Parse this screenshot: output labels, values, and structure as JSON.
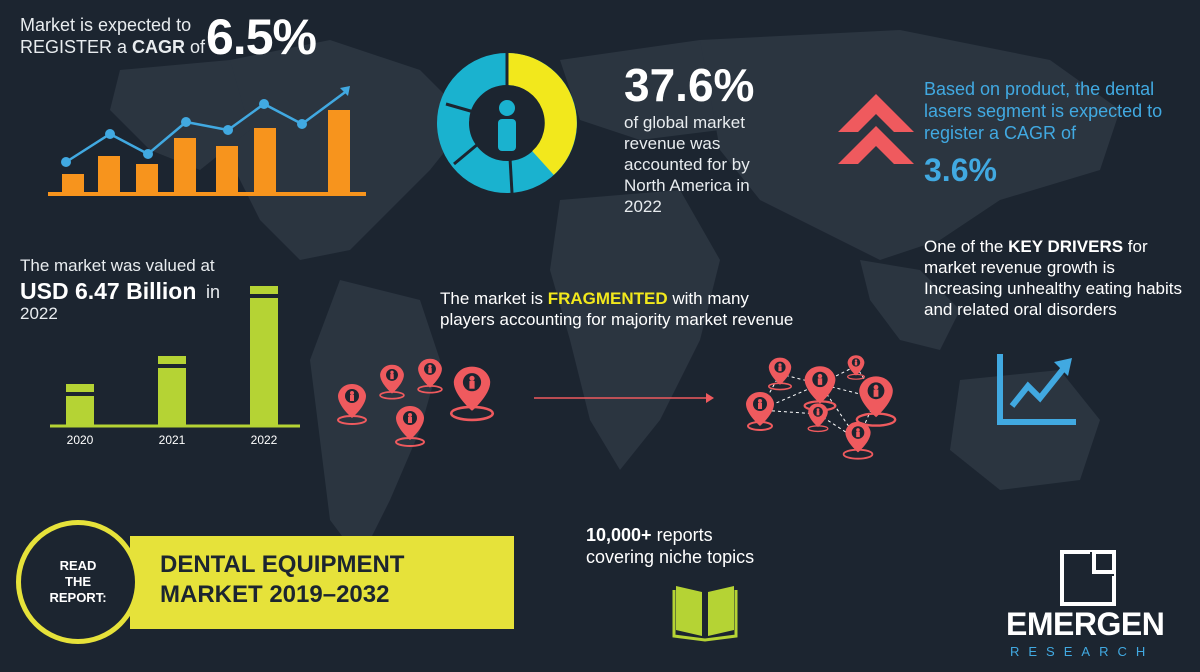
{
  "cagr": {
    "line1": "Market is expected to",
    "line2_pre": "REGISTER a ",
    "line2_bold": "CAGR",
    "line2_post": " of",
    "value": "6.5%"
  },
  "north_america": {
    "percent": "37.6%",
    "description": "of global market revenue was accounted for by North America in 2022"
  },
  "dental_lasers": {
    "description": "Based on product, the dental lasers segment is expected to register a CAGR of",
    "value": "3.6%"
  },
  "valuation": {
    "pre": "The market was valued at",
    "amount": "USD 6.47 Billion",
    "in": "in",
    "year": "2022"
  },
  "fragmented": {
    "pre": "The market is ",
    "highlight": "FRAGMENTED",
    "post": " with many players accounting for majority market revenue"
  },
  "key_drivers": {
    "pre": "One of the ",
    "bold": "KEY DRIVERS",
    "post": " for market revenue growth is Increasing unhealthy eating habits and related oral disorders"
  },
  "chart_data": {
    "type": "bar",
    "categories": [
      "2020",
      "2021",
      "2022"
    ],
    "values": [
      0.3,
      0.5,
      1.0
    ]
  },
  "read_report": {
    "label_line1": "READ",
    "label_line2": "THE",
    "label_line3": "REPORT:",
    "title_line1": "DENTAL EQUIPMENT",
    "title_line2": "MARKET 2019–2032"
  },
  "reports": {
    "bold": "10,000+",
    "line1_rest": " reports",
    "line2": "covering niche topics"
  },
  "brand": {
    "name": "EMERGEN",
    "sub": "RESEARCH"
  },
  "colors": {
    "background": "#1c2530",
    "orange": "#f7941d",
    "blue": "#41a9e1",
    "yellow": "#f2e81c",
    "lime": "#b5d334",
    "red": "#ef5a5e"
  }
}
